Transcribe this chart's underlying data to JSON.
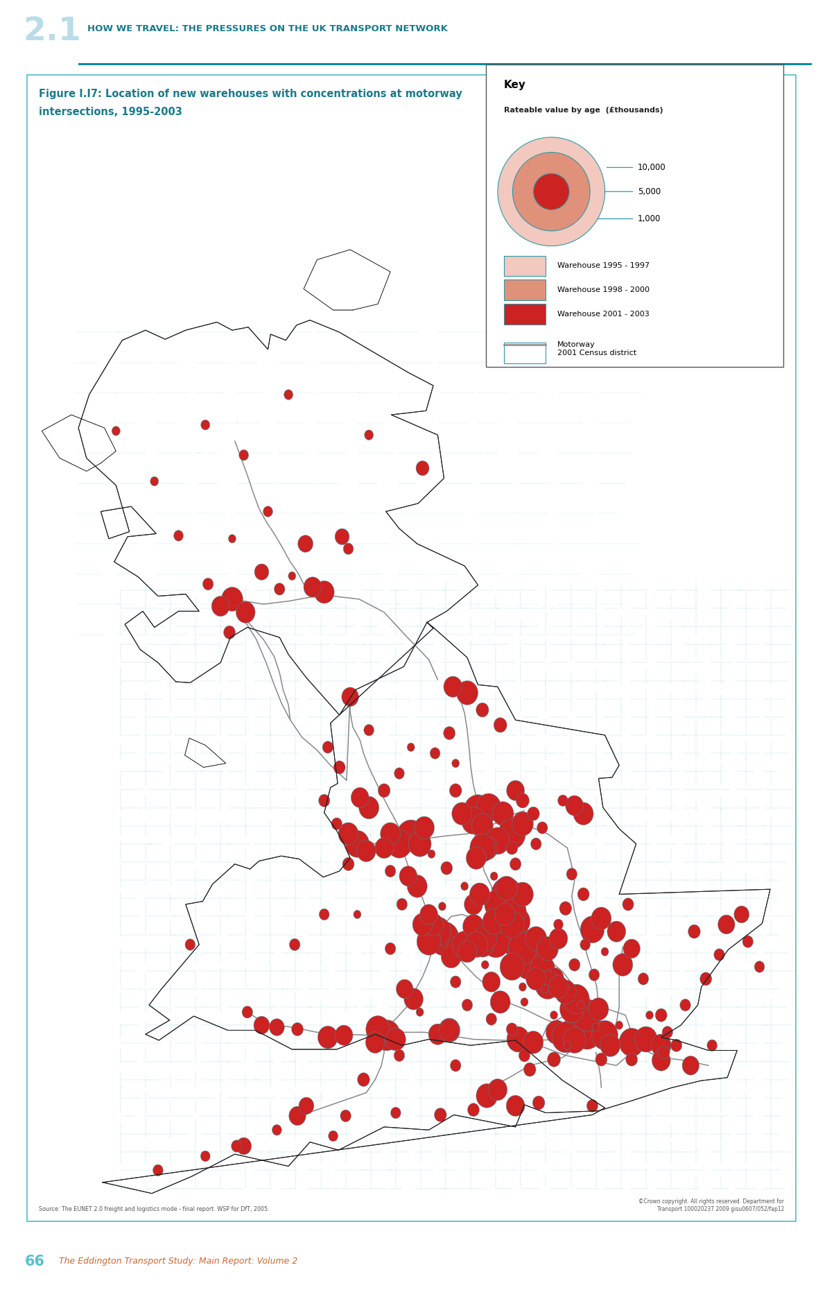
{
  "page_bg": "#ffffff",
  "header_num": "2.1",
  "header_num_color": "#b8dde8",
  "header_text": "How we travel: the pressures on the UK transport network",
  "header_text_color": "#1a7a8a",
  "header_line_color": "#008b9b",
  "figure_title_line1": "Figure I.I7: Location of new warehouses with concentrations at motorway",
  "figure_title_line2": "intersections, 1995-2003",
  "figure_title_color": "#1a7a8a",
  "figure_border_color": "#5bc0cc",
  "key_title": "Key",
  "key_subtitle": "Rateable value by age  (£thousands)",
  "key_values": [
    "10,000",
    "5,000",
    "1,000"
  ],
  "legend_items": [
    {
      "label": "Warehouse 1995 - 1997",
      "color": "#f2c8bf"
    },
    {
      "label": "Warehouse 1998 - 2000",
      "color": "#e0917a"
    },
    {
      "label": "Warehouse 2001 - 2003",
      "color": "#cc2222"
    },
    {
      "label": "Motorway",
      "color": "#888888"
    },
    {
      "label": "2001 Census district",
      "color": "#a8d8e0"
    }
  ],
  "footer_num": "66",
  "footer_num_color": "#5bc0cc",
  "footer_text": "The Eddington Transport Study: Main Report: Volume 2",
  "footer_text_color": "#cc6633",
  "source_text": "Source: The EUNET 2.0 freight and logistics mode - final report. WSP for DfT, 2005.",
  "copyright_text": "©Crown copyright. All rights reserved. Department for\nTransport 100020237 2009 gisu0607/052/fap12",
  "warehouse_color_1": "#f2c8bf",
  "warehouse_color_2": "#e0917a",
  "warehouse_color_3": "#cc2222",
  "circle_border_color": "#2a9aaa",
  "map_xlim": [
    -6.5,
    2.1
  ],
  "map_ylim": [
    49.8,
    60.9
  ],
  "motorway_color": "#888888",
  "district_border_color": "#a8d8e0"
}
